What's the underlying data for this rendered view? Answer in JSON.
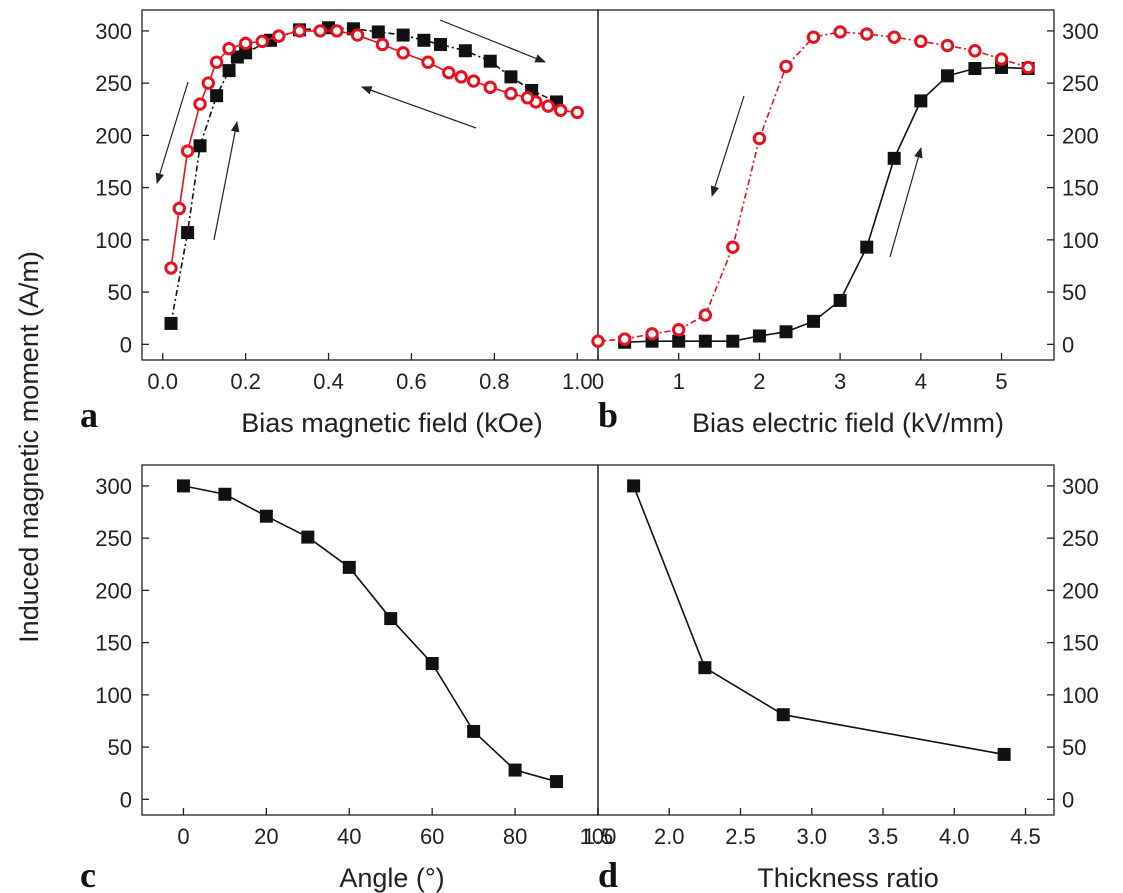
{
  "ylabel": "Induced magnetic moment (A/m)",
  "chart_data": [
    {
      "panel": "a",
      "type": "line",
      "xlabel": "Bias magnetic field (kOe)",
      "xlim": [
        -0.05,
        1.05
      ],
      "ylim": [
        -15,
        320
      ],
      "xticks": [
        "0.0",
        "0.2",
        "0.4",
        "0.6",
        "0.8",
        "1.0"
      ],
      "xtick_values": [
        0,
        0.2,
        0.4,
        0.6,
        0.8,
        1.0
      ],
      "yticks": [
        "0",
        "50",
        "100",
        "150",
        "200",
        "250",
        "300"
      ],
      "ytick_values": [
        0,
        50,
        100,
        150,
        200,
        250,
        300
      ],
      "y_axis_side": "left",
      "series": [
        {
          "marker": "square",
          "color": "#111111",
          "line": "dashdot",
          "x": [
            0.02,
            0.06,
            0.09,
            0.13,
            0.16,
            0.18,
            0.2,
            0.26,
            0.33,
            0.4,
            0.46,
            0.52,
            0.58,
            0.63,
            0.67,
            0.73,
            0.79,
            0.84,
            0.89,
            0.95
          ],
          "y": [
            20,
            107,
            190,
            238,
            262,
            275,
            279,
            291,
            301,
            303,
            302,
            299,
            296,
            291,
            287,
            281,
            271,
            256,
            243,
            232
          ]
        },
        {
          "marker": "circle",
          "color": "#e8101c",
          "line": "solid",
          "x": [
            1.0,
            0.96,
            0.93,
            0.9,
            0.88,
            0.84,
            0.79,
            0.75,
            0.72,
            0.69,
            0.64,
            0.58,
            0.53,
            0.47,
            0.42,
            0.38,
            0.33,
            0.28,
            0.24,
            0.2,
            0.16,
            0.13,
            0.11,
            0.09,
            0.06,
            0.04,
            0.02
          ],
          "y": [
            222,
            224,
            228,
            232,
            236,
            240,
            246,
            252,
            256,
            260,
            270,
            279,
            287,
            296,
            300,
            300,
            300,
            295,
            290,
            288,
            283,
            270,
            250,
            230,
            185,
            130,
            73
          ]
        }
      ]
    },
    {
      "panel": "b",
      "type": "line",
      "xlabel": "Bias electric field (kV/mm)",
      "xlim": [
        0,
        5.65
      ],
      "ylim": [
        -15,
        320
      ],
      "xticks": [
        "0",
        "1",
        "2",
        "3",
        "4",
        "5"
      ],
      "xtick_values": [
        0,
        1,
        2,
        3,
        4,
        5
      ],
      "yticks": [
        "0",
        "50",
        "100",
        "150",
        "200",
        "250",
        "300"
      ],
      "ytick_values": [
        0,
        50,
        100,
        150,
        200,
        250,
        300
      ],
      "y_axis_side": "right",
      "series": [
        {
          "marker": "square",
          "color": "#111111",
          "line": "solid",
          "x": [
            0.33,
            0.67,
            1.0,
            1.33,
            1.67,
            2.0,
            2.33,
            2.67,
            3.0,
            3.33,
            3.67,
            4.0,
            4.33,
            4.67,
            5.0,
            5.33
          ],
          "y": [
            2,
            3,
            3,
            3,
            3,
            8,
            12,
            22,
            42,
            93,
            178,
            233,
            257,
            264,
            265,
            264
          ]
        },
        {
          "marker": "circle",
          "color": "#e8101c",
          "line": "dashdot",
          "x": [
            5.33,
            5.0,
            4.67,
            4.33,
            4.0,
            3.67,
            3.33,
            3.0,
            2.67,
            2.33,
            2.0,
            1.67,
            1.33,
            1.0,
            0.67,
            0.33,
            0.0
          ],
          "y": [
            265,
            273,
            281,
            286,
            290,
            294,
            297,
            299,
            294,
            266,
            197,
            93,
            28,
            14,
            10,
            5,
            3
          ]
        }
      ]
    },
    {
      "panel": "c",
      "type": "line",
      "xlabel": "Angle (°)",
      "xlim": [
        -10,
        100
      ],
      "ylim": [
        -15,
        320
      ],
      "xticks": [
        "0",
        "20",
        "40",
        "60",
        "80",
        "100"
      ],
      "xtick_values": [
        0,
        20,
        40,
        60,
        80,
        100
      ],
      "yticks": [
        "0",
        "50",
        "100",
        "150",
        "200",
        "250",
        "300"
      ],
      "ytick_values": [
        0,
        50,
        100,
        150,
        200,
        250,
        300
      ],
      "y_axis_side": "left",
      "series": [
        {
          "marker": "square",
          "color": "#111111",
          "line": "solid",
          "x": [
            0,
            10,
            20,
            30,
            40,
            50,
            60,
            70,
            80,
            90
          ],
          "y": [
            300,
            292,
            271,
            251,
            222,
            173,
            130,
            65,
            28,
            17
          ]
        }
      ]
    },
    {
      "panel": "d",
      "type": "line",
      "xlabel": "Thickness ratio",
      "xlim": [
        1.5,
        4.7
      ],
      "ylim": [
        -15,
        320
      ],
      "xticks": [
        "1.5",
        "2.0",
        "2.5",
        "3.0",
        "3.5",
        "4.0",
        "4.5"
      ],
      "xtick_values": [
        1.5,
        2.0,
        2.5,
        3.0,
        3.5,
        4.0,
        4.5
      ],
      "yticks": [
        "0",
        "50",
        "100",
        "150",
        "200",
        "250",
        "300"
      ],
      "ytick_values": [
        0,
        50,
        100,
        150,
        200,
        250,
        300
      ],
      "y_axis_side": "right",
      "series": [
        {
          "marker": "square",
          "color": "#111111",
          "line": "solid",
          "x": [
            1.75,
            2.25,
            2.8,
            4.35
          ],
          "y": [
            300,
            126,
            81,
            43
          ]
        }
      ]
    }
  ]
}
